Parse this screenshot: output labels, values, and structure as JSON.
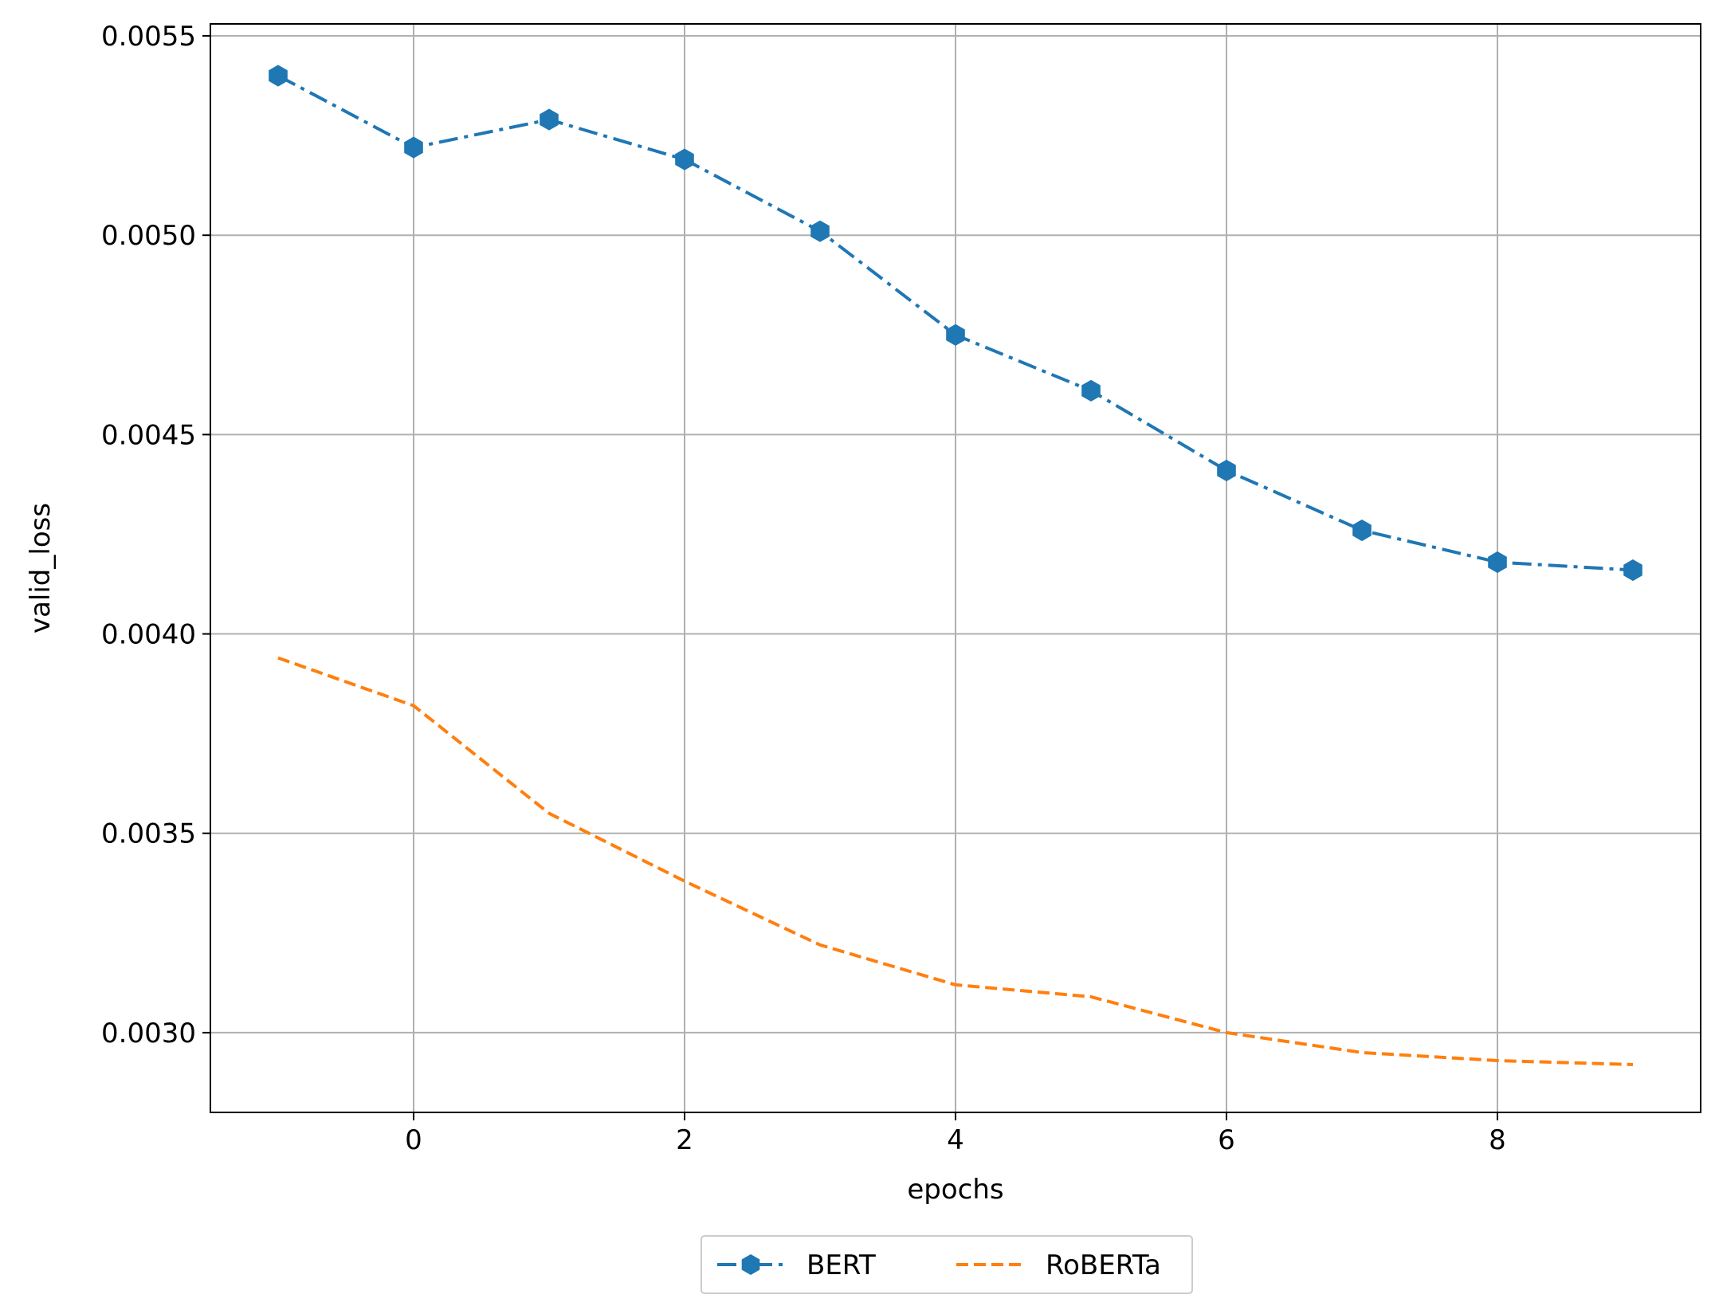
{
  "chart_data": {
    "type": "line",
    "title": "",
    "xlabel": "epochs",
    "ylabel": "valid_loss",
    "x": [
      -1,
      0,
      1,
      2,
      3,
      4,
      5,
      6,
      7,
      8,
      9
    ],
    "xlim": [
      -1.5,
      9.5
    ],
    "ylim": [
      0.0028,
      0.00553
    ],
    "xticks": [
      0,
      2,
      4,
      6,
      8
    ],
    "xtick_labels": [
      "0",
      "2",
      "4",
      "6",
      "8"
    ],
    "yticks": [
      0.003,
      0.0035,
      0.004,
      0.0045,
      0.005,
      0.0055
    ],
    "ytick_labels": [
      "0.0030",
      "0.0035",
      "0.0040",
      "0.0045",
      "0.0050",
      "0.0055"
    ],
    "grid": true,
    "legend_position": "bottom-center",
    "series": [
      {
        "name": "BERT",
        "color": "#1f77b4",
        "line_style": "dash-dot",
        "marker": "hexagon",
        "values": [
          0.0054,
          0.00522,
          0.00529,
          0.00519,
          0.00501,
          0.00475,
          0.00461,
          0.00441,
          0.00426,
          0.00418,
          0.00416
        ]
      },
      {
        "name": "RoBERTa",
        "color": "#ff7f0e",
        "line_style": "dashed",
        "marker": "none",
        "values": [
          0.00394,
          0.00382,
          0.00355,
          0.00338,
          0.00322,
          0.00312,
          0.00309,
          0.003,
          0.00295,
          0.00293,
          0.00292
        ]
      }
    ]
  }
}
